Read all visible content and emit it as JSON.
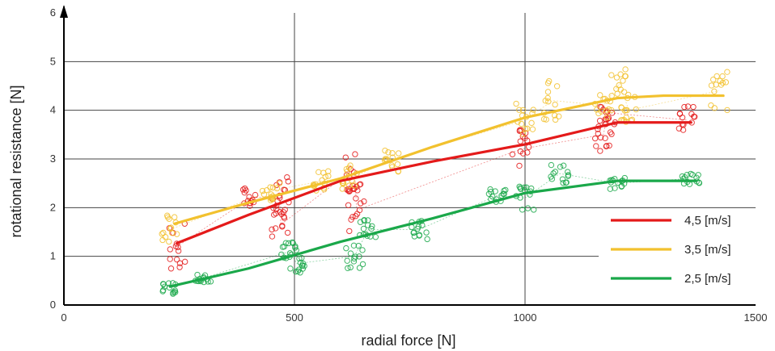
{
  "chart_data": {
    "type": "scatter",
    "xlabel": "radial force [N]",
    "ylabel": "rotational resistance [N]",
    "xlim": [
      0,
      1500
    ],
    "ylim": [
      0,
      6
    ],
    "x_ticks": [
      "0",
      "500",
      "1000",
      "1500"
    ],
    "y_ticks": [
      "0",
      "1",
      "2",
      "3",
      "4",
      "5",
      "6"
    ],
    "grid": "horizontal lines at each integer y, vertical lines at x=500 and x=1000",
    "legend_position": "bottom-right",
    "series": [
      {
        "name": "4,5 [m/s]",
        "color": "#e41a1a",
        "fit_x": [
          245,
          400,
          600,
          800,
          1000,
          1200,
          1360
        ],
        "fit_y": [
          1.27,
          1.85,
          2.55,
          2.95,
          3.3,
          3.75,
          3.75
        ],
        "clusters": [
          {
            "x": 245,
            "y": 1.2,
            "spread": 0.5
          },
          {
            "x": 405,
            "y": 2.2,
            "spread": 0.2
          },
          {
            "x": 470,
            "y": 2.25,
            "spread": 0.4
          },
          {
            "x": 470,
            "y": 1.65,
            "spread": 0.35
          },
          {
            "x": 630,
            "y": 2.8,
            "spread": 0.45
          },
          {
            "x": 635,
            "y": 1.95,
            "spread": 0.5
          },
          {
            "x": 990,
            "y": 3.2,
            "spread": 0.4
          },
          {
            "x": 1170,
            "y": 3.5,
            "spread": 0.35
          },
          {
            "x": 1180,
            "y": 3.95,
            "spread": 0.25
          },
          {
            "x": 1350,
            "y": 3.8,
            "spread": 0.3
          }
        ]
      },
      {
        "name": "3,5 [m/s]",
        "color": "#f2c12e",
        "fit_x": [
          240,
          400,
          600,
          800,
          1000,
          1200,
          1300,
          1430
        ],
        "fit_y": [
          1.67,
          2.1,
          2.6,
          3.25,
          3.85,
          4.25,
          4.3,
          4.3
        ],
        "clusters": [
          {
            "x": 230,
            "y": 1.55,
            "spread": 0.3
          },
          {
            "x": 450,
            "y": 2.35,
            "spread": 0.2
          },
          {
            "x": 560,
            "y": 2.55,
            "spread": 0.2
          },
          {
            "x": 620,
            "y": 2.6,
            "spread": 0.3
          },
          {
            "x": 715,
            "y": 3.0,
            "spread": 0.3
          },
          {
            "x": 1000,
            "y": 3.8,
            "spread": 0.35
          },
          {
            "x": 1060,
            "y": 4.2,
            "spread": 0.4
          },
          {
            "x": 1170,
            "y": 4.1,
            "spread": 0.25
          },
          {
            "x": 1205,
            "y": 4.55,
            "spread": 0.3
          },
          {
            "x": 1225,
            "y": 4.0,
            "spread": 0.3
          },
          {
            "x": 1420,
            "y": 4.4,
            "spread": 0.4
          }
        ]
      },
      {
        "name": "2,5 [m/s]",
        "color": "#1aa84a",
        "fit_x": [
          230,
          400,
          600,
          800,
          1000,
          1200,
          1370
        ],
        "fit_y": [
          0.38,
          0.75,
          1.3,
          1.78,
          2.3,
          2.55,
          2.55
        ],
        "clusters": [
          {
            "x": 230,
            "y": 0.35,
            "spread": 0.12
          },
          {
            "x": 300,
            "y": 0.55,
            "spread": 0.08
          },
          {
            "x": 490,
            "y": 1.1,
            "spread": 0.2
          },
          {
            "x": 505,
            "y": 0.85,
            "spread": 0.25
          },
          {
            "x": 630,
            "y": 1.0,
            "spread": 0.25
          },
          {
            "x": 660,
            "y": 1.55,
            "spread": 0.2
          },
          {
            "x": 770,
            "y": 1.55,
            "spread": 0.2
          },
          {
            "x": 940,
            "y": 2.25,
            "spread": 0.15
          },
          {
            "x": 1000,
            "y": 2.2,
            "spread": 0.25
          },
          {
            "x": 1075,
            "y": 2.7,
            "spread": 0.2
          },
          {
            "x": 1200,
            "y": 2.5,
            "spread": 0.12
          },
          {
            "x": 1360,
            "y": 2.6,
            "spread": 0.12
          }
        ]
      }
    ]
  }
}
